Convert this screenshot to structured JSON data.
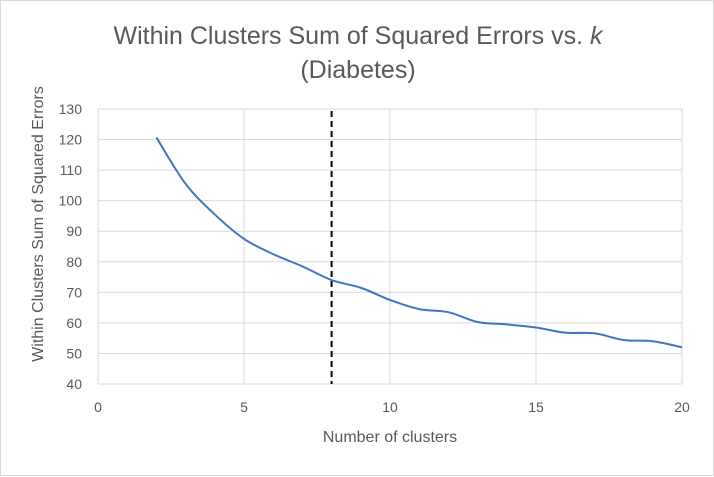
{
  "chart_data": {
    "type": "line",
    "title": "Within Clusters Sum of Squared Errors vs.",
    "title_variable": "k",
    "subtitle": "(Diabetes)",
    "xlabel": "Number of clusters",
    "ylabel": "Within Clusters Sum of Squared Errors",
    "xlim": [
      0,
      20
    ],
    "ylim": [
      40,
      130
    ],
    "x_ticks": [
      0,
      5,
      10,
      15,
      20
    ],
    "y_ticks": [
      40,
      50,
      60,
      70,
      80,
      90,
      100,
      110,
      120,
      130
    ],
    "grid": true,
    "legend": "none",
    "series": [
      {
        "color": "#4472c4",
        "x": [
          2,
          3,
          4,
          5,
          6,
          7,
          8,
          9,
          10,
          11,
          12,
          13,
          14,
          15,
          16,
          17,
          18,
          19,
          20
        ],
        "y": [
          120.7,
          105.5,
          95.5,
          87.5,
          82.5,
          78.5,
          74,
          71.5,
          67.5,
          64.5,
          63.5,
          60.3,
          59.5,
          58.5,
          56.8,
          56.6,
          54.4,
          54,
          52
        ]
      }
    ],
    "reference_line": {
      "axis": "x",
      "value": 8,
      "style": "dashed",
      "color": "#000000"
    }
  }
}
